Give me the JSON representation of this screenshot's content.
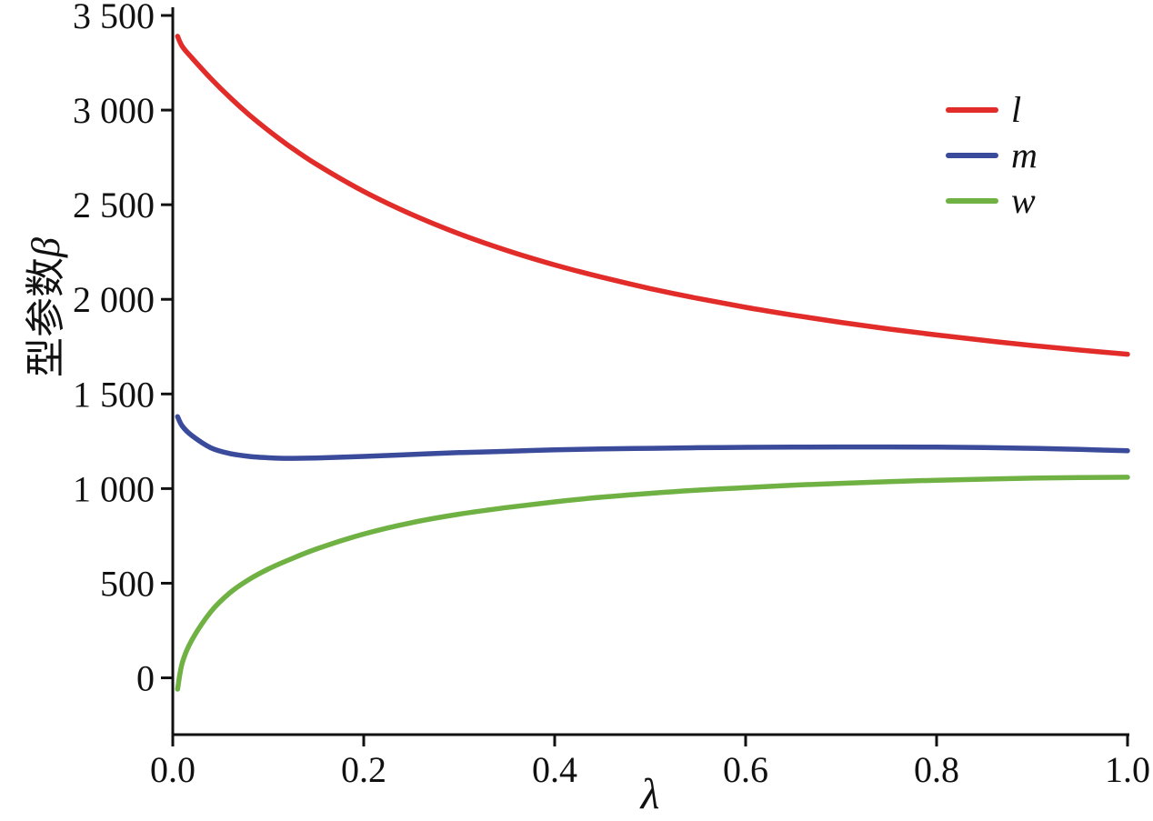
{
  "chart_data": {
    "type": "line",
    "title": "",
    "xlabel": "λ",
    "ylabel_cjk": "型参数",
    "ylabel_symbol": "β",
    "xlim": [
      0,
      1.0
    ],
    "ylim": [
      -300,
      3500
    ],
    "grid": false,
    "legend_position": "top-right",
    "axis_color": "#111111",
    "xticks": {
      "values": [
        0,
        0.2,
        0.4,
        0.6,
        0.8,
        1.0
      ],
      "labels": [
        "0.0",
        "0.2",
        "0.4",
        "0.6",
        "0.8",
        "1.0"
      ]
    },
    "yticks": {
      "values": [
        0,
        500,
        1000,
        1500,
        2000,
        2500,
        3000,
        3500
      ],
      "labels": [
        "0",
        "500",
        "1 000",
        "1 500",
        "2 000",
        "2 500",
        "3 000",
        "3 500"
      ]
    },
    "x": [
      0.005,
      0.01,
      0.02,
      0.04,
      0.06,
      0.08,
      0.1,
      0.12,
      0.15,
      0.2,
      0.25,
      0.3,
      0.35,
      0.4,
      0.45,
      0.5,
      0.55,
      0.6,
      0.65,
      0.7,
      0.75,
      0.8,
      0.85,
      0.9,
      0.95,
      1.0
    ],
    "series": [
      {
        "name": "l",
        "color": "#e12c29",
        "values": [
          3390,
          3336,
          3276,
          3166,
          3066,
          2975,
          2893,
          2817,
          2715,
          2570,
          2449,
          2346,
          2258,
          2182,
          2116,
          2057,
          2005,
          1958,
          1916,
          1878,
          1843,
          1812,
          1783,
          1756,
          1732,
          1710
        ]
      },
      {
        "name": "m",
        "color": "#3b4b9b",
        "values": [
          1380,
          1330,
          1280,
          1215,
          1185,
          1170,
          1163,
          1160,
          1162,
          1170,
          1180,
          1190,
          1197,
          1205,
          1210,
          1213,
          1216,
          1218,
          1219,
          1220,
          1220,
          1219,
          1217,
          1213,
          1207,
          1200
        ]
      },
      {
        "name": "w",
        "color": "#6fb143",
        "values": [
          -60,
          80,
          200,
          350,
          450,
          520,
          575,
          620,
          680,
          760,
          820,
          865,
          900,
          930,
          955,
          975,
          992,
          1005,
          1018,
          1028,
          1037,
          1044,
          1050,
          1055,
          1058,
          1060
        ]
      }
    ]
  }
}
